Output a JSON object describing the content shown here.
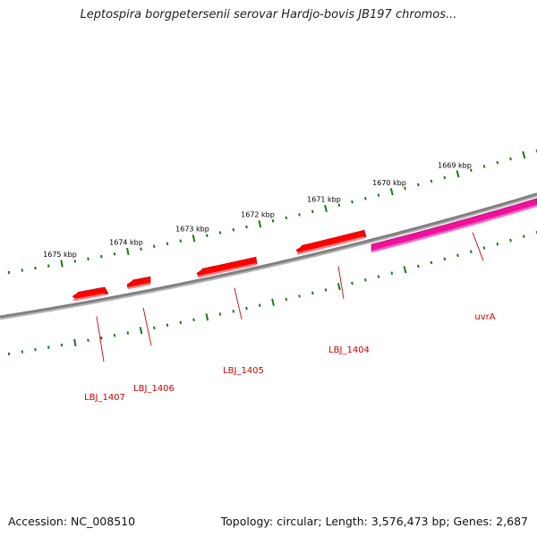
{
  "title": "Leptospira borgpetersenii serovar Hardjo-bovis JB197 chromos...",
  "footer": {
    "accession": "Accession: NC_008510",
    "topology": "Topology: circular; Length: 3,576,473 bp; Genes: 2,687"
  },
  "colors": {
    "backbone": "#808080",
    "tick": "#1a7a1a",
    "gene": "#ff0000",
    "gene_highlight": "#ee1199",
    "gene_label": "#cc0000"
  },
  "ticks": [
    {
      "label": "1669 kbp"
    },
    {
      "label": "1670 kbp"
    },
    {
      "label": "1671 kbp"
    },
    {
      "label": "1672 kbp"
    },
    {
      "label": "1673 kbp"
    },
    {
      "label": "1674 kbp"
    },
    {
      "label": "1675 kbp"
    }
  ],
  "genes": [
    {
      "name": "uvrA",
      "strand": "reverse"
    },
    {
      "name": "LBJ_1404",
      "strand": "forward"
    },
    {
      "name": "LBJ_1405",
      "strand": "forward"
    },
    {
      "name": "LBJ_1406",
      "strand": "forward"
    },
    {
      "name": "LBJ_1407",
      "strand": "forward"
    }
  ]
}
